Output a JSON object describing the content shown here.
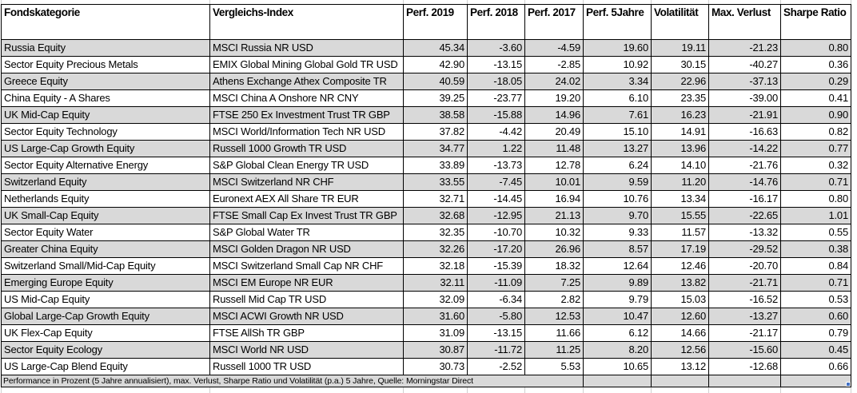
{
  "chart_data": {
    "type": "table",
    "title": "",
    "columns": [
      "Fondskategorie",
      "Vergleichs-Index",
      "Perf. 2019",
      "Perf. 2018",
      "Perf. 2017",
      "Perf. 5Jahre",
      "Volatilität",
      "Max. Verlust",
      "Sharpe Ratio"
    ],
    "rows": [
      {
        "category": "Russia Equity",
        "index": "MSCI Russia NR USD",
        "values": [
          45.34,
          -3.6,
          -4.59,
          19.6,
          19.11,
          -21.23,
          0.8
        ]
      },
      {
        "category": "Sector Equity Precious Metals",
        "index": "EMIX Global Mining Global Gold TR USD",
        "values": [
          42.9,
          -13.15,
          -2.85,
          10.92,
          30.15,
          -40.27,
          0.36
        ]
      },
      {
        "category": "Greece Equity",
        "index": "Athens Exchange Athex Composite TR",
        "values": [
          40.59,
          -18.05,
          24.02,
          3.34,
          22.96,
          -37.13,
          0.29
        ]
      },
      {
        "category": "China Equity - A Shares",
        "index": "MSCI China A Onshore NR CNY",
        "values": [
          39.25,
          -23.77,
          19.2,
          6.1,
          23.35,
          -39.0,
          0.41
        ]
      },
      {
        "category": "UK Mid-Cap Equity",
        "index": "FTSE 250 Ex Investment Trust TR GBP",
        "values": [
          38.58,
          -15.88,
          14.96,
          7.61,
          16.23,
          -21.91,
          0.9
        ]
      },
      {
        "category": "Sector Equity Technology",
        "index": "MSCI World/Information Tech NR USD",
        "values": [
          37.82,
          -4.42,
          20.49,
          15.1,
          14.91,
          -16.63,
          0.82
        ]
      },
      {
        "category": "US Large-Cap Growth Equity",
        "index": "Russell 1000 Growth TR USD",
        "values": [
          34.77,
          1.22,
          11.48,
          13.27,
          13.96,
          -14.22,
          0.77
        ]
      },
      {
        "category": "Sector Equity Alternative Energy",
        "index": "S&P Global Clean Energy TR USD",
        "values": [
          33.89,
          -13.73,
          12.78,
          6.24,
          14.1,
          -21.76,
          0.32
        ]
      },
      {
        "category": "Switzerland Equity",
        "index": "MSCI Switzerland NR CHF",
        "values": [
          33.55,
          -7.45,
          10.01,
          9.59,
          11.2,
          -14.76,
          0.71
        ]
      },
      {
        "category": "Netherlands Equity",
        "index": "Euronext AEX All Share TR EUR",
        "values": [
          32.71,
          -14.45,
          16.94,
          10.76,
          13.34,
          -16.17,
          0.8
        ]
      },
      {
        "category": "UK Small-Cap Equity",
        "index": "FTSE Small Cap Ex Invest Trust TR GBP",
        "values": [
          32.68,
          -12.95,
          21.13,
          9.7,
          15.55,
          -22.65,
          1.01
        ]
      },
      {
        "category": "Sector Equity Water",
        "index": "S&P Global Water TR",
        "values": [
          32.35,
          -10.7,
          10.32,
          9.33,
          11.57,
          -13.32,
          0.55
        ]
      },
      {
        "category": "Greater China Equity",
        "index": "MSCI Golden Dragon NR USD",
        "values": [
          32.26,
          -17.2,
          26.96,
          8.57,
          17.19,
          -29.52,
          0.38
        ]
      },
      {
        "category": "Switzerland Small/Mid-Cap Equity",
        "index": "MSCI Switzerland Small Cap NR CHF",
        "values": [
          32.18,
          -15.39,
          18.32,
          12.64,
          12.46,
          -20.7,
          0.84
        ]
      },
      {
        "category": "Emerging Europe Equity",
        "index": "MSCI EM Europe NR EUR",
        "values": [
          32.11,
          -11.09,
          7.25,
          9.89,
          13.82,
          -21.71,
          0.71
        ]
      },
      {
        "category": "US Mid-Cap Equity",
        "index": "Russell Mid Cap TR USD",
        "values": [
          32.09,
          -6.34,
          2.82,
          9.79,
          15.03,
          -16.52,
          0.53
        ]
      },
      {
        "category": "Global Large-Cap Growth Equity",
        "index": "MSCI ACWI Growth NR USD",
        "values": [
          31.6,
          -5.8,
          12.53,
          10.47,
          12.6,
          -13.27,
          0.6
        ]
      },
      {
        "category": "UK Flex-Cap Equity",
        "index": "FTSE AllSh TR GBP",
        "values": [
          31.09,
          -13.15,
          11.66,
          6.12,
          14.66,
          -21.17,
          0.79
        ]
      },
      {
        "category": "Sector Equity Ecology",
        "index": "MSCI World NR USD",
        "values": [
          30.87,
          -11.72,
          11.25,
          8.2,
          12.56,
          -15.6,
          0.45
        ]
      },
      {
        "category": "US Large-Cap Blend Equity",
        "index": "Russell 1000 TR USD",
        "values": [
          30.73,
          -2.52,
          5.53,
          10.65,
          13.12,
          -12.68,
          0.66
        ]
      }
    ],
    "footnote": "Performance in Prozent (5 Jahre annualisiert), max. Verlust, Sharpe Ratio und Volatilität (p.a.) 5 Jahre, Quelle: Morningstar Direct",
    "layout": {
      "grid": "all-borders",
      "stripe_pattern": "odd-rows-gray",
      "header_position": "top"
    }
  },
  "colors": {
    "row_stripe": "#d9d9d9",
    "row_plain": "#ffffff",
    "cell_border": "#000000",
    "faint_gridline": "#d0d0d0",
    "fill_handle": "#4472c4",
    "text": "#000000"
  }
}
